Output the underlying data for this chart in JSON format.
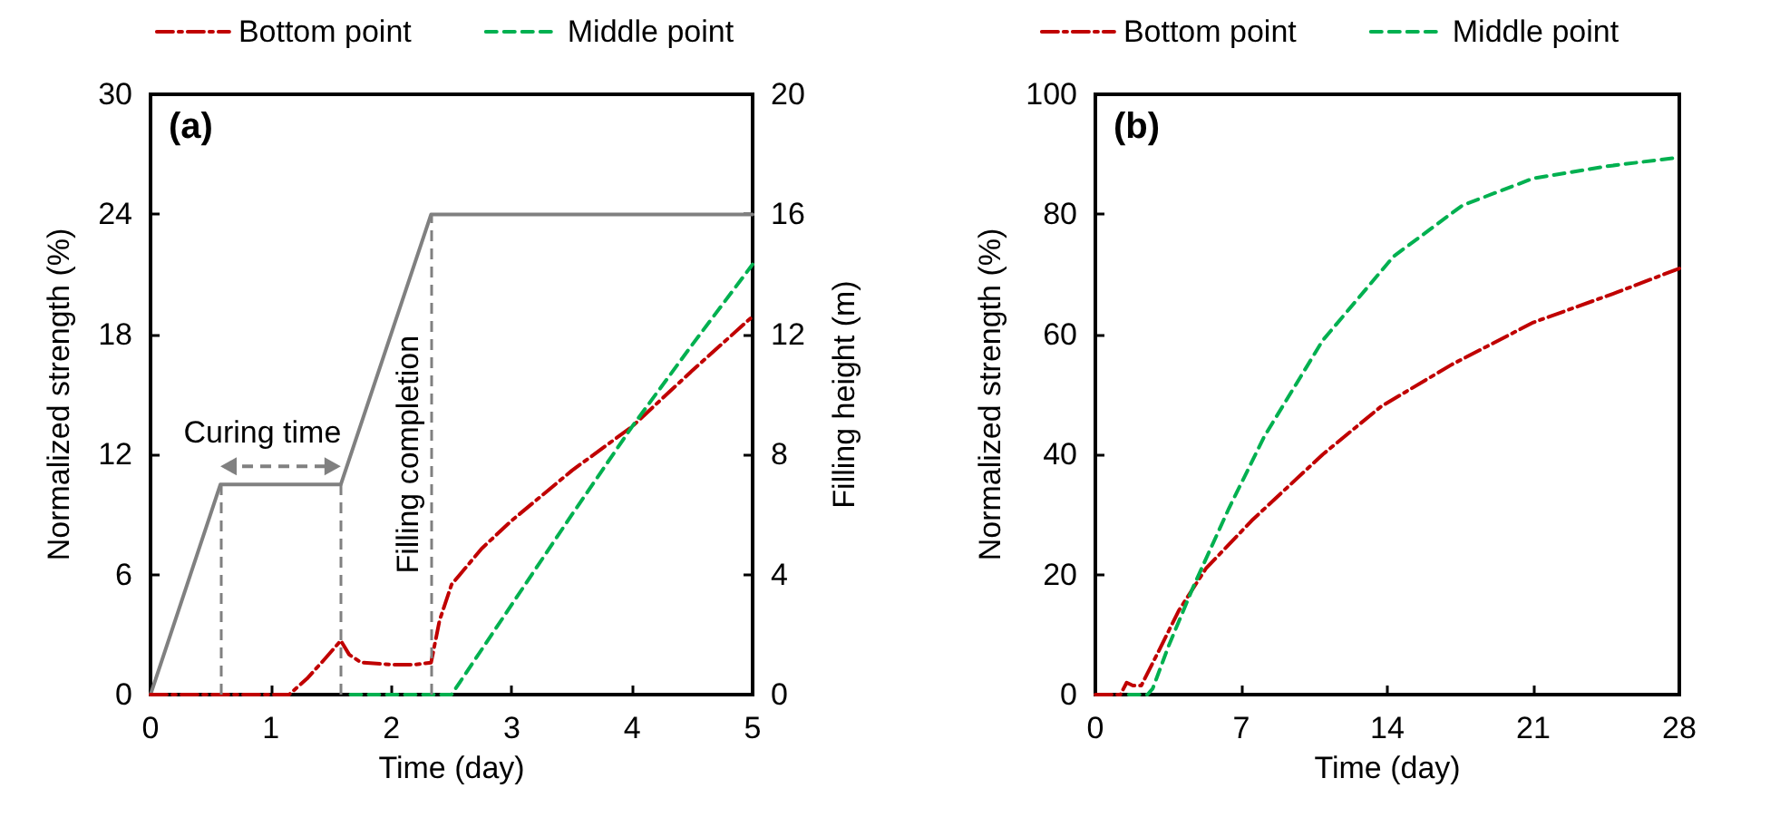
{
  "chart_data": [
    {
      "type": "line",
      "xlabel": "Time (day)",
      "ylabel": "Normalized strength (%)",
      "y2label": "Filling height (m)",
      "xlim": [
        0,
        5
      ],
      "xticks": [
        0,
        1,
        2,
        3,
        4,
        5
      ],
      "ylim": [
        0,
        30
      ],
      "yticks": [
        0,
        6,
        12,
        18,
        24,
        30
      ],
      "y2lim": [
        0,
        20
      ],
      "y2ticks": [
        0,
        4,
        8,
        12,
        16,
        20
      ],
      "grid": false,
      "legend": "top",
      "marker": "none",
      "annotations": [
        "(a)",
        "Curing time"
      ],
      "ref_lines": [
        {
          "axis": "x",
          "value": 0.58,
          "color": "#808080",
          "line_style": "dashed"
        },
        {
          "axis": "x",
          "value": 1.58,
          "color": "#808080",
          "line_style": "dashed"
        },
        {
          "axis": "x",
          "value": 2.33,
          "color": "#808080",
          "line_style": "dashed",
          "label": "Filling completion"
        }
      ],
      "series": [
        {
          "name": "Bottom point",
          "color": "#c00000",
          "line_style": "dashdot",
          "x": [
            0,
            0.5,
            1.0,
            1.15,
            1.3,
            1.45,
            1.58,
            1.65,
            1.75,
            2.0,
            2.2,
            2.33,
            2.4,
            2.5,
            2.75,
            3,
            3.5,
            4,
            4.5,
            5
          ],
          "values": [
            0,
            0,
            0,
            0,
            0.8,
            1.8,
            2.7,
            2.0,
            1.6,
            1.5,
            1.5,
            1.6,
            3.7,
            5.5,
            7.3,
            8.7,
            11.2,
            13.4,
            16.2,
            18.9
          ]
        },
        {
          "name": "Middle point",
          "color": "#00b050",
          "line_style": "dashed",
          "x": [
            1.66,
            2.5,
            3,
            3.5,
            4,
            4.5,
            5
          ],
          "values": [
            0,
            0,
            4.5,
            9,
            13.4,
            17.5,
            21.5
          ]
        },
        {
          "color": "#808080",
          "line_style": "solid",
          "axis": "y2",
          "x": [
            0,
            0.58,
            1.58,
            2.33,
            5
          ],
          "values": [
            0,
            7,
            7,
            16,
            16
          ]
        }
      ]
    },
    {
      "type": "line",
      "xlabel": "Time (day)",
      "ylabel": "Normalized strength (%)",
      "xlim": [
        0,
        28
      ],
      "xticks": [
        0,
        7,
        14,
        21,
        28
      ],
      "ylim": [
        0,
        100
      ],
      "yticks": [
        0,
        20,
        40,
        60,
        80,
        100
      ],
      "grid": false,
      "legend": "top",
      "marker": "none",
      "annotations": [
        "(b)"
      ],
      "series": [
        {
          "name": "Bottom point",
          "color": "#c00000",
          "line_style": "dashdot",
          "x": [
            0,
            1.2,
            1.5,
            1.8,
            2.2,
            3,
            4,
            5.3,
            7.5,
            10.9,
            13.7,
            17.1,
            21,
            25,
            28
          ],
          "values": [
            0,
            0,
            2,
            1.5,
            1.5,
            7,
            14,
            21,
            29,
            40,
            48,
            55,
            62,
            67,
            71
          ]
        },
        {
          "name": "Middle point",
          "color": "#00b050",
          "line_style": "dashed",
          "x": [
            1.6,
            2.5,
            2.75,
            3.5,
            4.7,
            6.4,
            8.1,
            10.9,
            14.3,
            17.6,
            21,
            24.5,
            28
          ],
          "values": [
            0,
            0,
            1,
            8,
            18,
            31,
            43,
            59,
            73,
            81.5,
            86,
            88,
            89.5
          ]
        }
      ]
    }
  ]
}
